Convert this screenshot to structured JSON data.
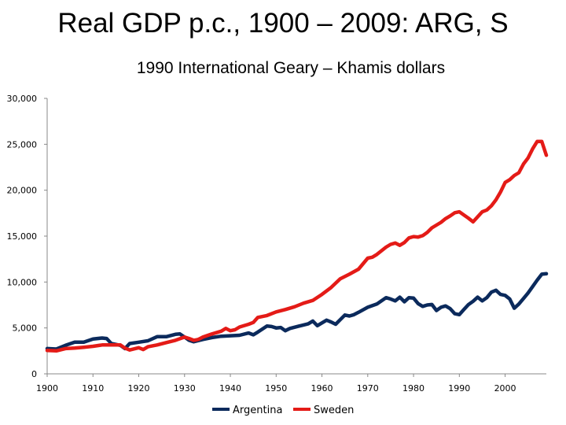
{
  "title": "Real GDP p.c., 1900 – 2009: ARG, S",
  "subtitle": "1990 International Geary – Khamis dollars",
  "colors": {
    "Argentina": "#0b2a5c",
    "Sweden": "#e41b17"
  },
  "chart_data": {
    "type": "line",
    "title": "Real GDP p.c., 1900 – 2009: ARG, S",
    "subtitle": "1990 International Geary – Khamis dollars",
    "xlim": [
      1900,
      2009
    ],
    "ylim": [
      0,
      30000
    ],
    "xticks": [
      1900,
      1910,
      1920,
      1930,
      1940,
      1950,
      1960,
      1970,
      1980,
      1990,
      2000
    ],
    "xtick_labels": [
      "1900",
      "1910",
      "1920",
      "1930",
      "1940",
      "1950",
      "1960",
      "1970",
      "1980",
      "1990",
      "2000"
    ],
    "yticks": [
      0,
      5000,
      10000,
      15000,
      20000,
      25000,
      30000
    ],
    "ytick_labels": [
      "0",
      "5,000",
      "10,000",
      "15,000",
      "20,000",
      "25,000",
      "30,000"
    ],
    "grid": false,
    "legend": "bottom",
    "series": [
      {
        "name": "Argentina",
        "points": [
          [
            1900,
            2750
          ],
          [
            1902,
            2700
          ],
          [
            1904,
            3100
          ],
          [
            1906,
            3450
          ],
          [
            1908,
            3450
          ],
          [
            1910,
            3800
          ],
          [
            1912,
            3900
          ],
          [
            1913,
            3850
          ],
          [
            1914,
            3300
          ],
          [
            1916,
            3100
          ],
          [
            1917,
            2750
          ],
          [
            1918,
            3300
          ],
          [
            1920,
            3450
          ],
          [
            1922,
            3600
          ],
          [
            1924,
            4050
          ],
          [
            1926,
            4050
          ],
          [
            1928,
            4300
          ],
          [
            1929,
            4350
          ],
          [
            1930,
            4000
          ],
          [
            1931,
            3650
          ],
          [
            1932,
            3500
          ],
          [
            1934,
            3750
          ],
          [
            1936,
            3950
          ],
          [
            1938,
            4100
          ],
          [
            1940,
            4150
          ],
          [
            1942,
            4200
          ],
          [
            1944,
            4450
          ],
          [
            1945,
            4250
          ],
          [
            1946,
            4550
          ],
          [
            1948,
            5200
          ],
          [
            1949,
            5150
          ],
          [
            1950,
            5000
          ],
          [
            1951,
            5050
          ],
          [
            1952,
            4700
          ],
          [
            1953,
            4950
          ],
          [
            1955,
            5200
          ],
          [
            1957,
            5450
          ],
          [
            1958,
            5750
          ],
          [
            1959,
            5250
          ],
          [
            1960,
            5550
          ],
          [
            1961,
            5850
          ],
          [
            1962,
            5650
          ],
          [
            1963,
            5400
          ],
          [
            1964,
            5900
          ],
          [
            1965,
            6400
          ],
          [
            1966,
            6300
          ],
          [
            1967,
            6450
          ],
          [
            1968,
            6700
          ],
          [
            1970,
            7250
          ],
          [
            1972,
            7600
          ],
          [
            1974,
            8300
          ],
          [
            1975,
            8150
          ],
          [
            1976,
            7950
          ],
          [
            1977,
            8350
          ],
          [
            1978,
            7850
          ],
          [
            1979,
            8300
          ],
          [
            1980,
            8250
          ],
          [
            1981,
            7650
          ],
          [
            1982,
            7350
          ],
          [
            1983,
            7500
          ],
          [
            1984,
            7550
          ],
          [
            1985,
            6900
          ],
          [
            1986,
            7250
          ],
          [
            1987,
            7400
          ],
          [
            1988,
            7100
          ],
          [
            1989,
            6550
          ],
          [
            1990,
            6450
          ],
          [
            1991,
            7000
          ],
          [
            1992,
            7550
          ],
          [
            1993,
            7900
          ],
          [
            1994,
            8350
          ],
          [
            1995,
            7950
          ],
          [
            1996,
            8300
          ],
          [
            1997,
            8900
          ],
          [
            1998,
            9100
          ],
          [
            1999,
            8650
          ],
          [
            2000,
            8550
          ],
          [
            2001,
            8150
          ],
          [
            2002,
            7150
          ],
          [
            2003,
            7600
          ],
          [
            2004,
            8200
          ],
          [
            2005,
            8800
          ],
          [
            2006,
            9500
          ],
          [
            2007,
            10200
          ],
          [
            2008,
            10850
          ],
          [
            2009,
            10900
          ]
        ]
      },
      {
        "name": "Sweden",
        "points": [
          [
            1900,
            2550
          ],
          [
            1902,
            2500
          ],
          [
            1904,
            2750
          ],
          [
            1906,
            2800
          ],
          [
            1908,
            2900
          ],
          [
            1910,
            3000
          ],
          [
            1912,
            3150
          ],
          [
            1914,
            3150
          ],
          [
            1916,
            3150
          ],
          [
            1917,
            2800
          ],
          [
            1918,
            2600
          ],
          [
            1920,
            2850
          ],
          [
            1921,
            2650
          ],
          [
            1922,
            2950
          ],
          [
            1924,
            3150
          ],
          [
            1926,
            3400
          ],
          [
            1928,
            3650
          ],
          [
            1930,
            4000
          ],
          [
            1931,
            3850
          ],
          [
            1932,
            3650
          ],
          [
            1933,
            3750
          ],
          [
            1934,
            4000
          ],
          [
            1936,
            4350
          ],
          [
            1938,
            4650
          ],
          [
            1939,
            4950
          ],
          [
            1940,
            4700
          ],
          [
            1941,
            4800
          ],
          [
            1942,
            5100
          ],
          [
            1944,
            5400
          ],
          [
            1945,
            5600
          ],
          [
            1946,
            6150
          ],
          [
            1948,
            6350
          ],
          [
            1950,
            6750
          ],
          [
            1952,
            7000
          ],
          [
            1954,
            7300
          ],
          [
            1956,
            7700
          ],
          [
            1958,
            8000
          ],
          [
            1960,
            8650
          ],
          [
            1962,
            9400
          ],
          [
            1964,
            10350
          ],
          [
            1966,
            10850
          ],
          [
            1968,
            11400
          ],
          [
            1970,
            12600
          ],
          [
            1971,
            12700
          ],
          [
            1972,
            13000
          ],
          [
            1974,
            13800
          ],
          [
            1975,
            14100
          ],
          [
            1976,
            14250
          ],
          [
            1977,
            14000
          ],
          [
            1978,
            14300
          ],
          [
            1979,
            14800
          ],
          [
            1980,
            14950
          ],
          [
            1981,
            14900
          ],
          [
            1982,
            15050
          ],
          [
            1983,
            15400
          ],
          [
            1984,
            15900
          ],
          [
            1985,
            16200
          ],
          [
            1986,
            16500
          ],
          [
            1987,
            16900
          ],
          [
            1988,
            17200
          ],
          [
            1989,
            17550
          ],
          [
            1990,
            17650
          ],
          [
            1991,
            17300
          ],
          [
            1992,
            16950
          ],
          [
            1993,
            16550
          ],
          [
            1994,
            17100
          ],
          [
            1995,
            17650
          ],
          [
            1996,
            17850
          ],
          [
            1997,
            18300
          ],
          [
            1998,
            18950
          ],
          [
            1999,
            19800
          ],
          [
            2000,
            20850
          ],
          [
            2001,
            21150
          ],
          [
            2002,
            21600
          ],
          [
            2003,
            21900
          ],
          [
            2004,
            22850
          ],
          [
            2005,
            23500
          ],
          [
            2006,
            24500
          ],
          [
            2007,
            25300
          ],
          [
            2008,
            25300
          ],
          [
            2009,
            23800
          ]
        ]
      }
    ]
  }
}
